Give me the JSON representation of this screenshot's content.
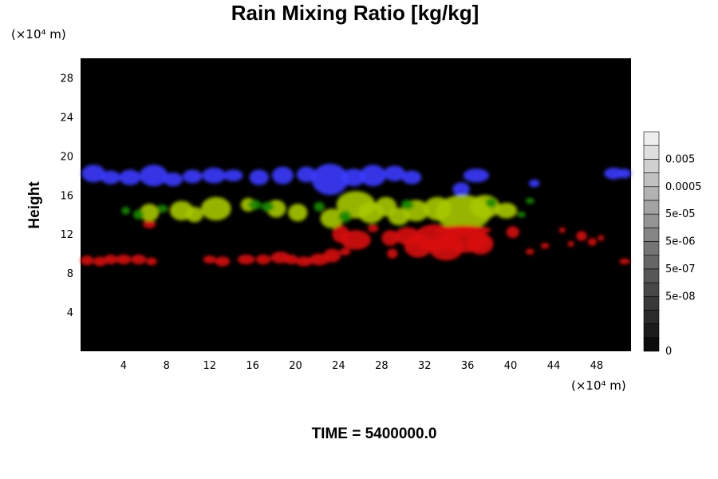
{
  "chart_data": {
    "type": "heatmap",
    "title": "Rain Mixing Ratio [kg/kg]",
    "xlabel": "",
    "ylabel": "Height",
    "x_unit": "(×10⁴ m)",
    "y_unit": "(×10⁴ m)",
    "xlim": [
      0,
      51.2
    ],
    "ylim": [
      0,
      30
    ],
    "xticks": [
      4,
      8,
      12,
      16,
      20,
      24,
      28,
      32,
      36,
      40,
      44,
      48
    ],
    "yticks": [
      4,
      8,
      12,
      16,
      20,
      24,
      28
    ],
    "background": "#000000",
    "time_label": "TIME = 5400000.0",
    "colorbar": {
      "levels": 16,
      "labels": [
        {
          "text": "0.005",
          "level": 14
        },
        {
          "text": "0.0005",
          "level": 12
        },
        {
          "text": "5e-05",
          "level": 10
        },
        {
          "text": "5e-06",
          "level": 8
        },
        {
          "text": "5e-07",
          "level": 6
        },
        {
          "text": "5e-08",
          "level": 4
        },
        {
          "text": "0",
          "level": 0
        }
      ]
    },
    "layers": [
      {
        "color": "#3a3aff",
        "blobs": [
          [
            1.2,
            18.2,
            1.1,
            0.9
          ],
          [
            2.8,
            17.8,
            0.9,
            0.7
          ],
          [
            4.6,
            17.8,
            1.0,
            0.8
          ],
          [
            6.8,
            18.0,
            1.3,
            1.1
          ],
          [
            8.6,
            17.6,
            0.9,
            0.7
          ],
          [
            10.4,
            17.9,
            0.9,
            0.7
          ],
          [
            12.4,
            18.0,
            1.1,
            0.8
          ],
          [
            14.2,
            18.0,
            0.9,
            0.6
          ],
          [
            16.6,
            17.8,
            0.9,
            0.8
          ],
          [
            18.8,
            18.0,
            1.0,
            0.9
          ],
          [
            21.0,
            18.1,
            0.9,
            0.8
          ],
          [
            23.2,
            17.6,
            1.7,
            1.6
          ],
          [
            25.4,
            17.8,
            1.1,
            0.9
          ],
          [
            27.2,
            18.0,
            1.2,
            1.1
          ],
          [
            29.2,
            18.2,
            1.0,
            0.8
          ],
          [
            30.8,
            17.8,
            0.9,
            0.7
          ],
          [
            35.4,
            16.6,
            0.8,
            0.7
          ],
          [
            36.8,
            18.0,
            1.2,
            0.7
          ],
          [
            42.2,
            17.2,
            0.5,
            0.4
          ],
          [
            49.6,
            18.2,
            0.9,
            0.6
          ],
          [
            50.6,
            18.2,
            0.6,
            0.5
          ]
        ]
      },
      {
        "color": "#a7c800",
        "blobs": [
          [
            6.4,
            14.2,
            0.9,
            0.9
          ],
          [
            9.4,
            14.4,
            1.1,
            1.0
          ],
          [
            10.6,
            14.0,
            0.8,
            0.8
          ],
          [
            12.6,
            14.6,
            1.4,
            1.2
          ],
          [
            15.6,
            15.0,
            0.7,
            0.7
          ],
          [
            18.2,
            14.6,
            0.9,
            0.9
          ],
          [
            20.2,
            14.2,
            0.9,
            0.9
          ],
          [
            23.4,
            13.6,
            1.1,
            1.0
          ],
          [
            25.6,
            15.0,
            1.8,
            1.4
          ],
          [
            27.0,
            14.2,
            1.2,
            1.1
          ],
          [
            28.4,
            14.8,
            1.0,
            1.0
          ],
          [
            29.6,
            13.8,
            1.0,
            0.9
          ],
          [
            31.2,
            14.4,
            1.2,
            1.1
          ],
          [
            33.2,
            14.6,
            1.3,
            1.2
          ],
          [
            35.6,
            14.2,
            2.6,
            1.8
          ],
          [
            37.6,
            14.8,
            1.4,
            1.2
          ],
          [
            39.6,
            14.4,
            1.0,
            0.8
          ]
        ]
      },
      {
        "color": "#1a8a00",
        "blobs": [
          [
            4.2,
            14.4,
            0.4,
            0.4
          ],
          [
            5.4,
            14.0,
            0.5,
            0.5
          ],
          [
            7.6,
            14.6,
            0.5,
            0.4
          ],
          [
            16.2,
            15.0,
            0.6,
            0.5
          ],
          [
            17.4,
            14.8,
            0.6,
            0.5
          ],
          [
            22.2,
            14.8,
            0.5,
            0.5
          ],
          [
            24.6,
            13.8,
            0.6,
            0.6
          ],
          [
            30.4,
            15.0,
            0.6,
            0.5
          ],
          [
            38.2,
            15.2,
            0.5,
            0.5
          ],
          [
            41.0,
            14.0,
            0.4,
            0.3
          ],
          [
            41.8,
            15.4,
            0.4,
            0.3
          ]
        ]
      },
      {
        "color": "#d80a0a",
        "blobs": [
          [
            0.6,
            9.3,
            0.6,
            0.5
          ],
          [
            1.8,
            9.2,
            0.6,
            0.5
          ],
          [
            2.8,
            9.4,
            0.6,
            0.5
          ],
          [
            4.0,
            9.4,
            0.7,
            0.5
          ],
          [
            5.4,
            9.4,
            0.7,
            0.5
          ],
          [
            6.6,
            9.2,
            0.5,
            0.4
          ],
          [
            6.4,
            13.0,
            0.6,
            0.4
          ],
          [
            12.0,
            9.4,
            0.6,
            0.4
          ],
          [
            13.2,
            9.2,
            0.7,
            0.5
          ],
          [
            15.4,
            9.4,
            0.8,
            0.5
          ],
          [
            17.0,
            9.4,
            0.7,
            0.5
          ],
          [
            18.6,
            9.6,
            0.9,
            0.6
          ],
          [
            19.6,
            9.4,
            0.6,
            0.5
          ],
          [
            20.8,
            9.2,
            0.8,
            0.5
          ],
          [
            22.2,
            9.4,
            0.9,
            0.6
          ],
          [
            23.4,
            9.8,
            0.8,
            0.7
          ],
          [
            24.6,
            10.2,
            0.5,
            0.4
          ],
          [
            25.6,
            11.4,
            1.4,
            1.0
          ],
          [
            24.2,
            12.0,
            0.8,
            0.9
          ],
          [
            27.2,
            12.6,
            0.5,
            0.4
          ],
          [
            28.8,
            11.6,
            0.8,
            0.8
          ],
          [
            29.0,
            10.0,
            0.5,
            0.5
          ],
          [
            30.4,
            11.8,
            1.2,
            0.9
          ],
          [
            31.4,
            10.8,
            1.3,
            1.2
          ],
          [
            33.0,
            11.6,
            2.0,
            1.4
          ],
          [
            34.0,
            10.6,
            1.6,
            1.3
          ],
          [
            35.8,
            11.4,
            2.2,
            1.3
          ],
          [
            37.2,
            11.0,
            1.2,
            1.1
          ],
          [
            35.6,
            12.4,
            2.6,
            0.5
          ],
          [
            40.2,
            12.2,
            0.6,
            0.6
          ],
          [
            41.8,
            10.2,
            0.4,
            0.3
          ],
          [
            43.2,
            10.8,
            0.4,
            0.3
          ],
          [
            44.8,
            12.4,
            0.3,
            0.3
          ],
          [
            45.6,
            11.0,
            0.3,
            0.3
          ],
          [
            46.6,
            11.8,
            0.5,
            0.5
          ],
          [
            47.6,
            11.2,
            0.4,
            0.4
          ],
          [
            48.4,
            11.6,
            0.3,
            0.3
          ],
          [
            50.6,
            9.2,
            0.5,
            0.3
          ]
        ]
      }
    ]
  }
}
